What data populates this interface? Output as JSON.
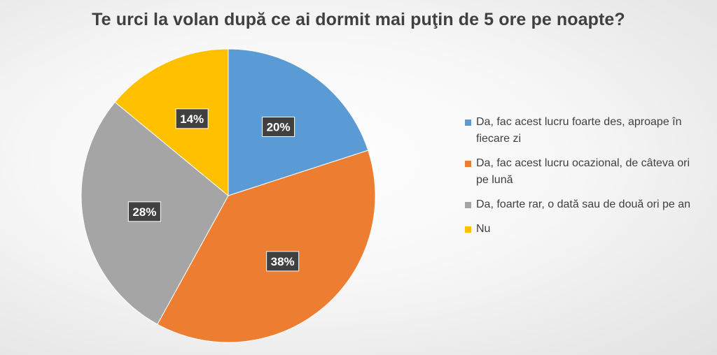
{
  "chart_data": {
    "type": "pie",
    "title": "Te urci la volan după ce ai dormit mai puţin de 5 ore pe noapte?",
    "slices": [
      {
        "label": "Da, fac acest lucru foarte des, aproape în fiecare zi",
        "value": 20,
        "display": "20%",
        "color": "#5B9BD5"
      },
      {
        "label": "Da, fac acest lucru ocazional, de câteva ori pe lună",
        "value": 38,
        "display": "38%",
        "color": "#ED7D31"
      },
      {
        "label": "Da, foarte rar, o dată sau de două ori pe an",
        "value": 28,
        "display": "28%",
        "color": "#A5A5A5"
      },
      {
        "label": "Nu",
        "value": 14,
        "display": "14%",
        "color": "#FFC000"
      }
    ],
    "legend_position": "right"
  }
}
